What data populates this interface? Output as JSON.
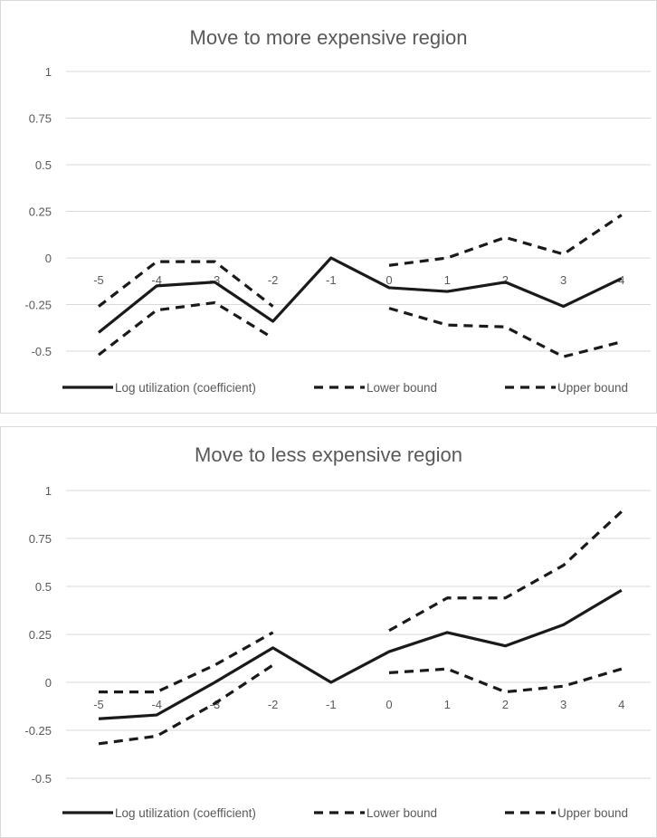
{
  "chart_data": [
    {
      "type": "line",
      "title": "Move to more expensive region",
      "categories": [
        "-5",
        "-4",
        "-3",
        "-2",
        "-1",
        "0",
        "1",
        "2",
        "3",
        "4"
      ],
      "y_ticks": [
        "1",
        "0.75",
        "0.5",
        "0.25",
        "0",
        "-0.25",
        "-0.5"
      ],
      "ylim": [
        -0.5,
        1
      ],
      "grid": true,
      "legend_position": "bottom",
      "series": [
        {
          "name": "Log utilization (coefficient)",
          "style": "solid",
          "values": [
            -0.4,
            -0.15,
            -0.13,
            -0.34,
            0.0,
            -0.16,
            -0.18,
            -0.13,
            -0.26,
            -0.11
          ]
        },
        {
          "name": "Lower bound",
          "style": "dashed",
          "values": [
            -0.52,
            -0.28,
            -0.24,
            -0.43,
            null,
            -0.27,
            -0.36,
            -0.37,
            -0.53,
            -0.45
          ]
        },
        {
          "name": "Upper bound",
          "style": "dashed",
          "values": [
            -0.26,
            -0.02,
            -0.02,
            -0.26,
            null,
            -0.04,
            0.0,
            0.11,
            0.02,
            0.23
          ]
        }
      ]
    },
    {
      "type": "line",
      "title": "Move to less expensive region",
      "categories": [
        "-5",
        "-4",
        "-3",
        "-2",
        "-1",
        "0",
        "1",
        "2",
        "3",
        "4"
      ],
      "y_ticks": [
        "1",
        "0.75",
        "0.5",
        "0.25",
        "0",
        "-0.25",
        "-0.5"
      ],
      "ylim": [
        -0.5,
        1
      ],
      "grid": true,
      "legend_position": "bottom",
      "series": [
        {
          "name": "Log utilization (coefficient)",
          "style": "solid",
          "values": [
            -0.19,
            -0.17,
            0.0,
            0.18,
            0.0,
            0.16,
            0.26,
            0.19,
            0.3,
            0.48
          ]
        },
        {
          "name": "Lower bound",
          "style": "dashed",
          "values": [
            -0.32,
            -0.28,
            -0.11,
            0.09,
            null,
            0.05,
            0.07,
            -0.05,
            -0.02,
            0.07
          ]
        },
        {
          "name": "Upper bound",
          "style": "dashed",
          "values": [
            -0.05,
            -0.05,
            0.09,
            0.26,
            null,
            0.27,
            0.44,
            0.44,
            0.61,
            0.89
          ]
        }
      ]
    }
  ]
}
